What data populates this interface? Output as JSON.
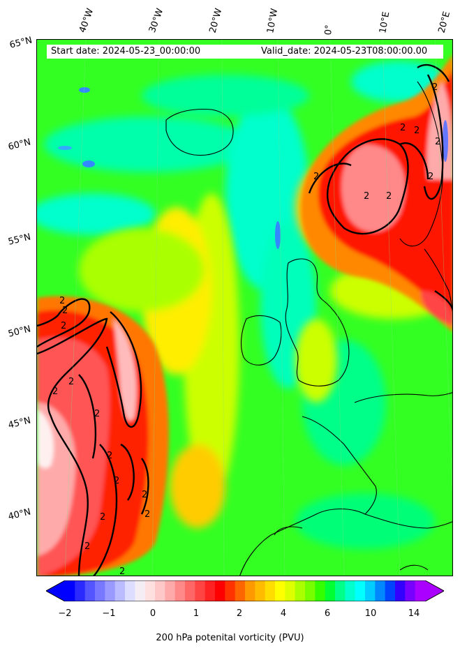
{
  "map": {
    "start_date": "Start date: 2024-05-23_00:00:00",
    "valid_date": "Valid_date: 2024-05-23T08:00:00.00",
    "longitude_labels": [
      "40°W",
      "30°W",
      "20°W",
      "10°W",
      "0°",
      "10°E",
      "20°E"
    ],
    "latitude_labels": [
      "65°N",
      "60°N",
      "55°N",
      "50°N",
      "45°N",
      "40°N"
    ],
    "contour_label": "2"
  },
  "colorbar": {
    "title": "200 hPa potenital vorticity (PVU)",
    "tick_labels": [
      "−2",
      "−1",
      "0",
      "1",
      "2",
      "4",
      "6",
      "10",
      "14"
    ],
    "colors": [
      "#0000ff",
      "#2a2aff",
      "#5555ff",
      "#7777ff",
      "#9999ff",
      "#bbbbff",
      "#ddddff",
      "#f4eef4",
      "#ffe0e0",
      "#ffc8c8",
      "#ffaaaa",
      "#ff8888",
      "#ff6666",
      "#ff4444",
      "#ff2222",
      "#ff0000",
      "#ff3300",
      "#ff6600",
      "#ff9900",
      "#ffbb00",
      "#ffdd00",
      "#ffff00",
      "#ddff00",
      "#aaff00",
      "#77ff00",
      "#33ff00",
      "#00ff33",
      "#00ff88",
      "#00ffcc",
      "#00ffff",
      "#00ccff",
      "#0088ff",
      "#0044ff",
      "#3300ff",
      "#7700ff",
      "#aa00ff"
    ]
  }
}
